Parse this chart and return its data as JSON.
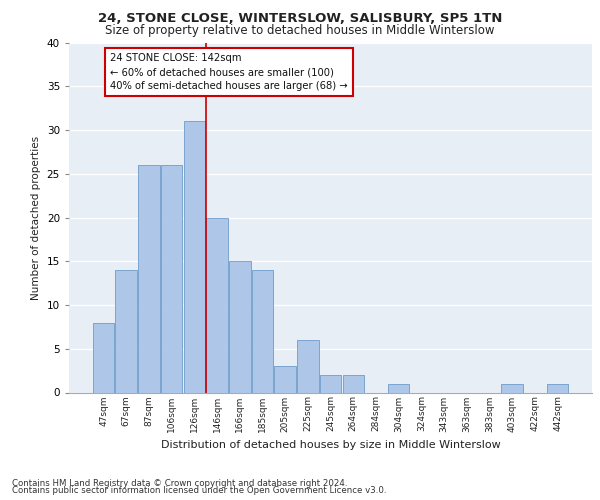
{
  "title1": "24, STONE CLOSE, WINTERSLOW, SALISBURY, SP5 1TN",
  "title2": "Size of property relative to detached houses in Middle Winterslow",
  "xlabel": "Distribution of detached houses by size in Middle Winterslow",
  "ylabel": "Number of detached properties",
  "categories": [
    "47sqm",
    "67sqm",
    "87sqm",
    "106sqm",
    "126sqm",
    "146sqm",
    "166sqm",
    "185sqm",
    "205sqm",
    "225sqm",
    "245sqm",
    "264sqm",
    "284sqm",
    "304sqm",
    "324sqm",
    "343sqm",
    "363sqm",
    "383sqm",
    "403sqm",
    "422sqm",
    "442sqm"
  ],
  "values": [
    8,
    14,
    26,
    26,
    31,
    20,
    15,
    14,
    3,
    6,
    2,
    2,
    0,
    1,
    0,
    0,
    0,
    0,
    1,
    0,
    1
  ],
  "bar_color": "#aec6e8",
  "bar_edge_color": "#5a8fc2",
  "vline_x": 4.5,
  "vline_color": "#cc0000",
  "annotation_line1": "24 STONE CLOSE: 142sqm",
  "annotation_line2": "← 60% of detached houses are smaller (100)",
  "annotation_line3": "40% of semi-detached houses are larger (68) →",
  "annotation_box_color": "#cc0000",
  "ylim": [
    0,
    40
  ],
  "yticks": [
    0,
    5,
    10,
    15,
    20,
    25,
    30,
    35,
    40
  ],
  "footer1": "Contains HM Land Registry data © Crown copyright and database right 2024.",
  "footer2": "Contains public sector information licensed under the Open Government Licence v3.0.",
  "bg_color": "#e8eef5",
  "fig_bg_color": "#ffffff"
}
